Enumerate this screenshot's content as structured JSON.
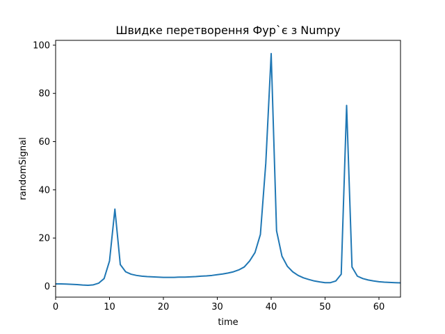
{
  "chart_data": {
    "type": "line",
    "title": "Швидке перетворення Фур`є з Numpy",
    "xlabel": "time",
    "ylabel": "randomSignal",
    "xlim": [
      0,
      64
    ],
    "ylim": [
      -4.5,
      102
    ],
    "grid": false,
    "xticks": [
      0,
      10,
      20,
      30,
      40,
      50,
      60
    ],
    "yticks": [
      0,
      20,
      40,
      60,
      80,
      100
    ],
    "series": [
      {
        "color": "#1f77b4",
        "x": [
          0,
          1,
          2,
          3,
          4,
          5,
          6,
          7,
          8,
          9,
          10,
          11,
          12,
          13,
          14,
          15,
          16,
          17,
          18,
          19,
          20,
          21,
          22,
          23,
          24,
          25,
          26,
          27,
          28,
          29,
          30,
          31,
          32,
          33,
          34,
          35,
          36,
          37,
          38,
          39,
          40,
          41,
          42,
          43,
          44,
          45,
          46,
          47,
          48,
          49,
          50,
          51,
          52,
          53,
          54,
          55,
          56,
          57,
          58,
          59,
          60,
          61,
          62,
          63,
          64
        ],
        "y": [
          1.0,
          1.0,
          0.9,
          0.8,
          0.7,
          0.5,
          0.4,
          0.6,
          1.3,
          3.2,
          10.5,
          32.0,
          9.0,
          6.0,
          5.0,
          4.5,
          4.2,
          4.0,
          3.9,
          3.8,
          3.7,
          3.7,
          3.7,
          3.8,
          3.8,
          3.9,
          4.0,
          4.2,
          4.3,
          4.5,
          4.8,
          5.1,
          5.5,
          6.0,
          6.8,
          8.0,
          10.5,
          14.0,
          21.5,
          51.0,
          96.5,
          23.0,
          12.5,
          8.3,
          6.0,
          4.5,
          3.5,
          2.8,
          2.2,
          1.8,
          1.5,
          1.5,
          2.2,
          5.0,
          75.0,
          8.0,
          4.2,
          3.2,
          2.6,
          2.2,
          1.9,
          1.7,
          1.6,
          1.5,
          1.4
        ]
      }
    ]
  }
}
